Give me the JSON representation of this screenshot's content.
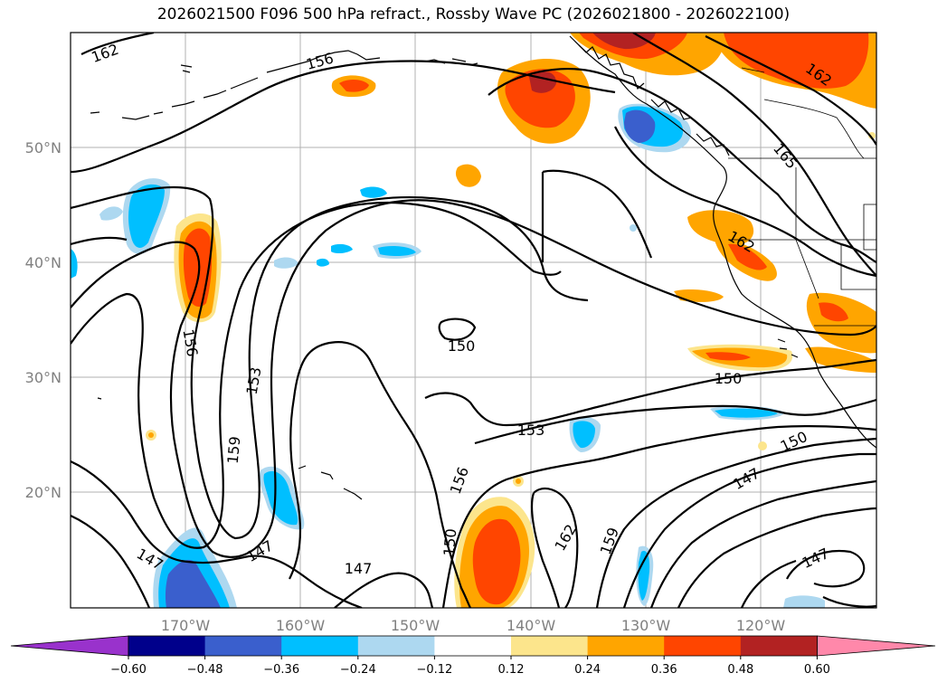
{
  "title": "2026021500 F096 500 hPa refract., Rossby Wave PC (2026021800 - 2026022100)",
  "lat_labels": [
    "50°N",
    "40°N",
    "30°N",
    "20°N"
  ],
  "lon_labels": [
    "170°W",
    "160°W",
    "150°W",
    "140°W",
    "130°W",
    "120°W"
  ],
  "contour_labels": [
    {
      "text": "162"
    },
    {
      "text": "156"
    },
    {
      "text": "156"
    },
    {
      "text": "153"
    },
    {
      "text": "159"
    },
    {
      "text": "150"
    },
    {
      "text": "153"
    },
    {
      "text": "150"
    },
    {
      "text": "165"
    },
    {
      "text": "162"
    },
    {
      "text": "150"
    },
    {
      "text": "147"
    },
    {
      "text": "147"
    },
    {
      "text": "147"
    },
    {
      "text": "150"
    },
    {
      "text": "156"
    },
    {
      "text": "162"
    },
    {
      "text": "159"
    },
    {
      "text": "147"
    },
    {
      "text": "162"
    }
  ],
  "colorbar": {
    "colors": [
      "#9932cc",
      "#00008b",
      "#3a5fcd",
      "#00bfff",
      "#add8f0",
      "#ffffff",
      "#fce58c",
      "#ffa500",
      "#ff4500",
      "#b22222",
      "#ff88aa"
    ],
    "ticks": [
      "−0.60",
      "−0.48",
      "−0.36",
      "−0.24",
      "−0.12",
      "0.12",
      "0.24",
      "0.36",
      "0.48",
      "0.60"
    ]
  }
}
